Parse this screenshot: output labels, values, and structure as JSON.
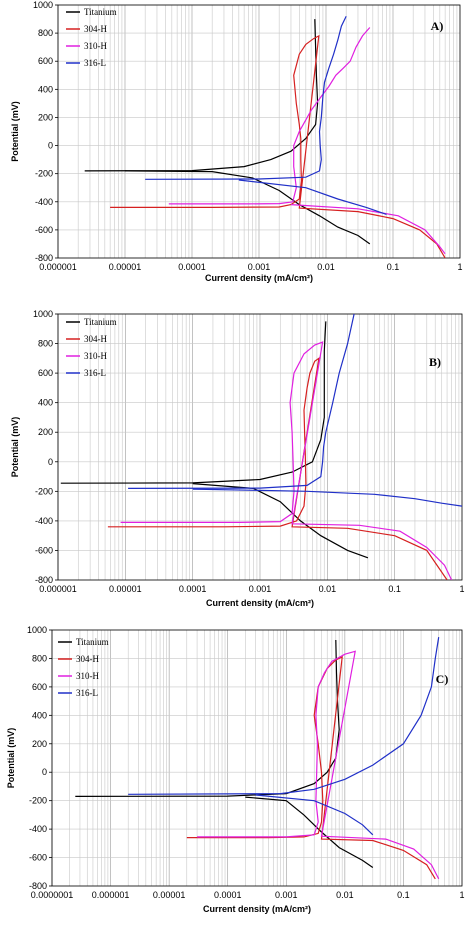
{
  "chart_data": [
    {
      "type": "line",
      "panel_label": "A)",
      "xlabel": "Current density (mA/cm²)",
      "ylabel": "Potential (mV)",
      "xscale": "log",
      "xlim": [
        1e-06,
        1
      ],
      "ylim": [
        -800,
        1000
      ],
      "x_ticks": [
        "0.000001",
        "0.00001",
        "0.0001",
        "0.001",
        "0.01",
        "0.1",
        "1"
      ],
      "y_ticks": [
        -800,
        -600,
        -400,
        -200,
        0,
        200,
        400,
        600,
        800,
        1000
      ],
      "legend_position": "top-left",
      "grid": true,
      "series": [
        {
          "name": "Titanium",
          "color": "#000000",
          "points": [
            [
              2.5e-06,
              -180
            ],
            [
              0.0001,
              -178
            ],
            [
              0.0006,
              -150
            ],
            [
              0.0015,
              -100
            ],
            [
              0.003,
              -40
            ],
            [
              0.005,
              50
            ],
            [
              0.007,
              150
            ],
            [
              0.0075,
              300
            ],
            [
              0.0072,
              500
            ],
            [
              0.007,
              700
            ],
            [
              0.0068,
              900
            ],
            [
              1e-05,
              -180
            ],
            [
              0.0002,
              -185
            ],
            [
              0.0008,
              -230
            ],
            [
              0.002,
              -320
            ],
            [
              0.004,
              -420
            ],
            [
              0.008,
              -500
            ],
            [
              0.015,
              -580
            ],
            [
              0.03,
              -640
            ],
            [
              0.045,
              -700
            ]
          ]
        },
        {
          "name": "304-H",
          "color": "#d62020",
          "points": [
            [
              6e-06,
              -440
            ],
            [
              0.0002,
              -440
            ],
            [
              0.002,
              -437
            ],
            [
              0.003,
              -420
            ],
            [
              0.004,
              -380
            ],
            [
              0.0043,
              -250
            ],
            [
              0.0042,
              -100
            ],
            [
              0.0042,
              50
            ],
            [
              0.004,
              150
            ],
            [
              0.0036,
              300
            ],
            [
              0.0033,
              500
            ],
            [
              0.004,
              650
            ],
            [
              0.005,
              720
            ],
            [
              0.0065,
              760
            ],
            [
              0.0078,
              780
            ],
            [
              0.004,
              -445
            ],
            [
              0.03,
              -470
            ],
            [
              0.1,
              -520
            ],
            [
              0.25,
              -600
            ],
            [
              0.45,
              -700
            ],
            [
              0.6,
              -800
            ]
          ]
        },
        {
          "name": "310-H",
          "color": "#e020e0",
          "points": [
            [
              4.5e-05,
              -415
            ],
            [
              0.0007,
              -415
            ],
            [
              0.002,
              -413
            ],
            [
              0.0032,
              -400
            ],
            [
              0.0036,
              -300
            ],
            [
              0.0033,
              -150
            ],
            [
              0.0033,
              0
            ],
            [
              0.004,
              100
            ],
            [
              0.006,
              250
            ],
            [
              0.0085,
              350
            ],
            [
              0.011,
              420
            ],
            [
              0.014,
              500
            ],
            [
              0.018,
              550
            ],
            [
              0.023,
              600
            ],
            [
              0.028,
              700
            ],
            [
              0.035,
              780
            ],
            [
              0.045,
              840
            ],
            [
              0.003,
              -420
            ],
            [
              0.03,
              -450
            ],
            [
              0.12,
              -500
            ],
            [
              0.3,
              -600
            ],
            [
              0.5,
              -720
            ],
            [
              0.6,
              -770
            ]
          ]
        },
        {
          "name": "316-L",
          "color": "#2030c8",
          "points": [
            [
              2e-05,
              -240
            ],
            [
              0.001,
              -238
            ],
            [
              0.005,
              -225
            ],
            [
              0.008,
              -180
            ],
            [
              0.0085,
              -100
            ],
            [
              0.0082,
              0
            ],
            [
              0.008,
              100
            ],
            [
              0.0085,
              200
            ],
            [
              0.009,
              350
            ],
            [
              0.0095,
              450
            ],
            [
              0.011,
              550
            ],
            [
              0.013,
              650
            ],
            [
              0.015,
              750
            ],
            [
              0.017,
              850
            ],
            [
              0.02,
              920
            ],
            [
              0.0005,
              -245
            ],
            [
              0.005,
              -300
            ],
            [
              0.015,
              -380
            ],
            [
              0.04,
              -440
            ],
            [
              0.08,
              -490
            ]
          ]
        }
      ]
    },
    {
      "type": "line",
      "panel_label": "B)",
      "xlabel": "Current density (mA/cm²)",
      "ylabel": "Potential (mV)",
      "xscale": "log",
      "xlim": [
        1e-06,
        1
      ],
      "ylim": [
        -800,
        1000
      ],
      "x_ticks": [
        "0.000001",
        "0.00001",
        "0.0001",
        "0.001",
        "0.01",
        "0.1",
        "1"
      ],
      "y_ticks": [
        -800,
        -600,
        -400,
        -200,
        0,
        200,
        400,
        600,
        800,
        1000
      ],
      "legend_position": "top-left",
      "grid": true,
      "series": [
        {
          "name": "Titanium",
          "color": "#000000",
          "points": [
            [
              1.1e-06,
              -145
            ],
            [
              0.0001,
              -143
            ],
            [
              0.001,
              -120
            ],
            [
              0.003,
              -70
            ],
            [
              0.006,
              0
            ],
            [
              0.008,
              150
            ],
            [
              0.009,
              300
            ],
            [
              0.009,
              500
            ],
            [
              0.009,
              750
            ],
            [
              0.0095,
              950
            ],
            [
              0.0001,
              -148
            ],
            [
              0.0008,
              -180
            ],
            [
              0.002,
              -270
            ],
            [
              0.004,
              -400
            ],
            [
              0.008,
              -500
            ],
            [
              0.02,
              -600
            ],
            [
              0.04,
              -650
            ]
          ]
        },
        {
          "name": "304-H",
          "color": "#d62020",
          "points": [
            [
              5.5e-06,
              -440
            ],
            [
              0.0003,
              -440
            ],
            [
              0.002,
              -435
            ],
            [
              0.0035,
              -400
            ],
            [
              0.0045,
              -300
            ],
            [
              0.0048,
              -150
            ],
            [
              0.0047,
              50
            ],
            [
              0.0046,
              200
            ],
            [
              0.0045,
              350
            ],
            [
              0.005,
              500
            ],
            [
              0.0055,
              600
            ],
            [
              0.0065,
              680
            ],
            [
              0.0075,
              700
            ],
            [
              0.003,
              -440
            ],
            [
              0.02,
              -450
            ],
            [
              0.1,
              -500
            ],
            [
              0.3,
              -600
            ],
            [
              0.6,
              -800
            ]
          ]
        },
        {
          "name": "310-H",
          "color": "#e020e0",
          "points": [
            [
              8.5e-06,
              -410
            ],
            [
              0.0005,
              -410
            ],
            [
              0.002,
              -405
            ],
            [
              0.003,
              -350
            ],
            [
              0.0032,
              -200
            ],
            [
              0.0031,
              0
            ],
            [
              0.003,
              200
            ],
            [
              0.0028,
              400
            ],
            [
              0.0032,
              600
            ],
            [
              0.0045,
              730
            ],
            [
              0.0065,
              790
            ],
            [
              0.0085,
              810
            ],
            [
              0.003,
              -420
            ],
            [
              0.03,
              -430
            ],
            [
              0.12,
              -470
            ],
            [
              0.3,
              -580
            ],
            [
              0.55,
              -700
            ],
            [
              0.7,
              -800
            ]
          ]
        },
        {
          "name": "316-L",
          "color": "#2030c8",
          "points": [
            [
              1.1e-05,
              -180
            ],
            [
              0.001,
              -178
            ],
            [
              0.005,
              -160
            ],
            [
              0.008,
              -100
            ],
            [
              0.0085,
              0
            ],
            [
              0.0088,
              100
            ],
            [
              0.0095,
              200
            ],
            [
              0.012,
              400
            ],
            [
              0.015,
              600
            ],
            [
              0.02,
              800
            ],
            [
              0.025,
              1000
            ],
            [
              0.0001,
              -185
            ],
            [
              0.005,
              -200
            ],
            [
              0.05,
              -220
            ],
            [
              0.2,
              -250
            ],
            [
              0.5,
              -280
            ],
            [
              1,
              -300
            ]
          ]
        }
      ]
    },
    {
      "type": "line",
      "panel_label": "C)",
      "xlabel": "Current density (mA/cm²)",
      "ylabel": "Potential (mV)",
      "xscale": "log",
      "xlim": [
        1e-07,
        1
      ],
      "ylim": [
        -800,
        1000
      ],
      "x_ticks": [
        "0.0000001",
        "0.000001",
        "0.00001",
        "0.0001",
        "0.001",
        "0.01",
        "0.1",
        "1"
      ],
      "y_ticks": [
        -800,
        -600,
        -400,
        -200,
        0,
        200,
        400,
        600,
        800,
        1000
      ],
      "legend_position": "top-left",
      "grid": true,
      "series": [
        {
          "name": "Titanium",
          "color": "#000000",
          "points": [
            [
              2.5e-07,
              -170
            ],
            [
              0.0001,
              -168
            ],
            [
              0.001,
              -150
            ],
            [
              0.003,
              -80
            ],
            [
              0.005,
              0
            ],
            [
              0.007,
              100
            ],
            [
              0.008,
              300
            ],
            [
              0.0075,
              500
            ],
            [
              0.0072,
              700
            ],
            [
              0.007,
              930
            ],
            [
              0.0002,
              -175
            ],
            [
              0.001,
              -200
            ],
            [
              0.002,
              -300
            ],
            [
              0.004,
              -420
            ],
            [
              0.008,
              -530
            ],
            [
              0.02,
              -620
            ],
            [
              0.03,
              -670
            ]
          ]
        },
        {
          "name": "304-H",
          "color": "#d62020",
          "points": [
            [
              2e-05,
              -460
            ],
            [
              0.0005,
              -460
            ],
            [
              0.002,
              -455
            ],
            [
              0.0035,
              -430
            ],
            [
              0.004,
              -350
            ],
            [
              0.0042,
              -200
            ],
            [
              0.004,
              0
            ],
            [
              0.0035,
              200
            ],
            [
              0.003,
              400
            ],
            [
              0.0035,
              600
            ],
            [
              0.005,
              730
            ],
            [
              0.007,
              790
            ],
            [
              0.009,
              810
            ],
            [
              0.004,
              -470
            ],
            [
              0.03,
              -480
            ],
            [
              0.1,
              -550
            ],
            [
              0.25,
              -650
            ],
            [
              0.35,
              -750
            ]
          ]
        },
        {
          "name": "310-H",
          "color": "#e020e0",
          "points": [
            [
              3e-05,
              -455
            ],
            [
              0.001,
              -455
            ],
            [
              0.003,
              -440
            ],
            [
              0.0035,
              -350
            ],
            [
              0.0032,
              -200
            ],
            [
              0.0033,
              0
            ],
            [
              0.0034,
              200
            ],
            [
              0.0032,
              400
            ],
            [
              0.0035,
              600
            ],
            [
              0.0045,
              700
            ],
            [
              0.006,
              780
            ],
            [
              0.01,
              830
            ],
            [
              0.015,
              850
            ],
            [
              0.004,
              -450
            ],
            [
              0.05,
              -470
            ],
            [
              0.15,
              -540
            ],
            [
              0.3,
              -650
            ],
            [
              0.4,
              -750
            ]
          ]
        },
        {
          "name": "316-L",
          "color": "#2030c8",
          "points": [
            [
              2e-06,
              -155
            ],
            [
              0.0008,
              -150
            ],
            [
              0.003,
              -120
            ],
            [
              0.01,
              -50
            ],
            [
              0.03,
              50
            ],
            [
              0.1,
              200
            ],
            [
              0.2,
              400
            ],
            [
              0.3,
              600
            ],
            [
              0.35,
              800
            ],
            [
              0.4,
              950
            ],
            [
              0.0003,
              -160
            ],
            [
              0.003,
              -200
            ],
            [
              0.01,
              -290
            ],
            [
              0.02,
              -370
            ],
            [
              0.03,
              -440
            ]
          ]
        }
      ]
    }
  ]
}
